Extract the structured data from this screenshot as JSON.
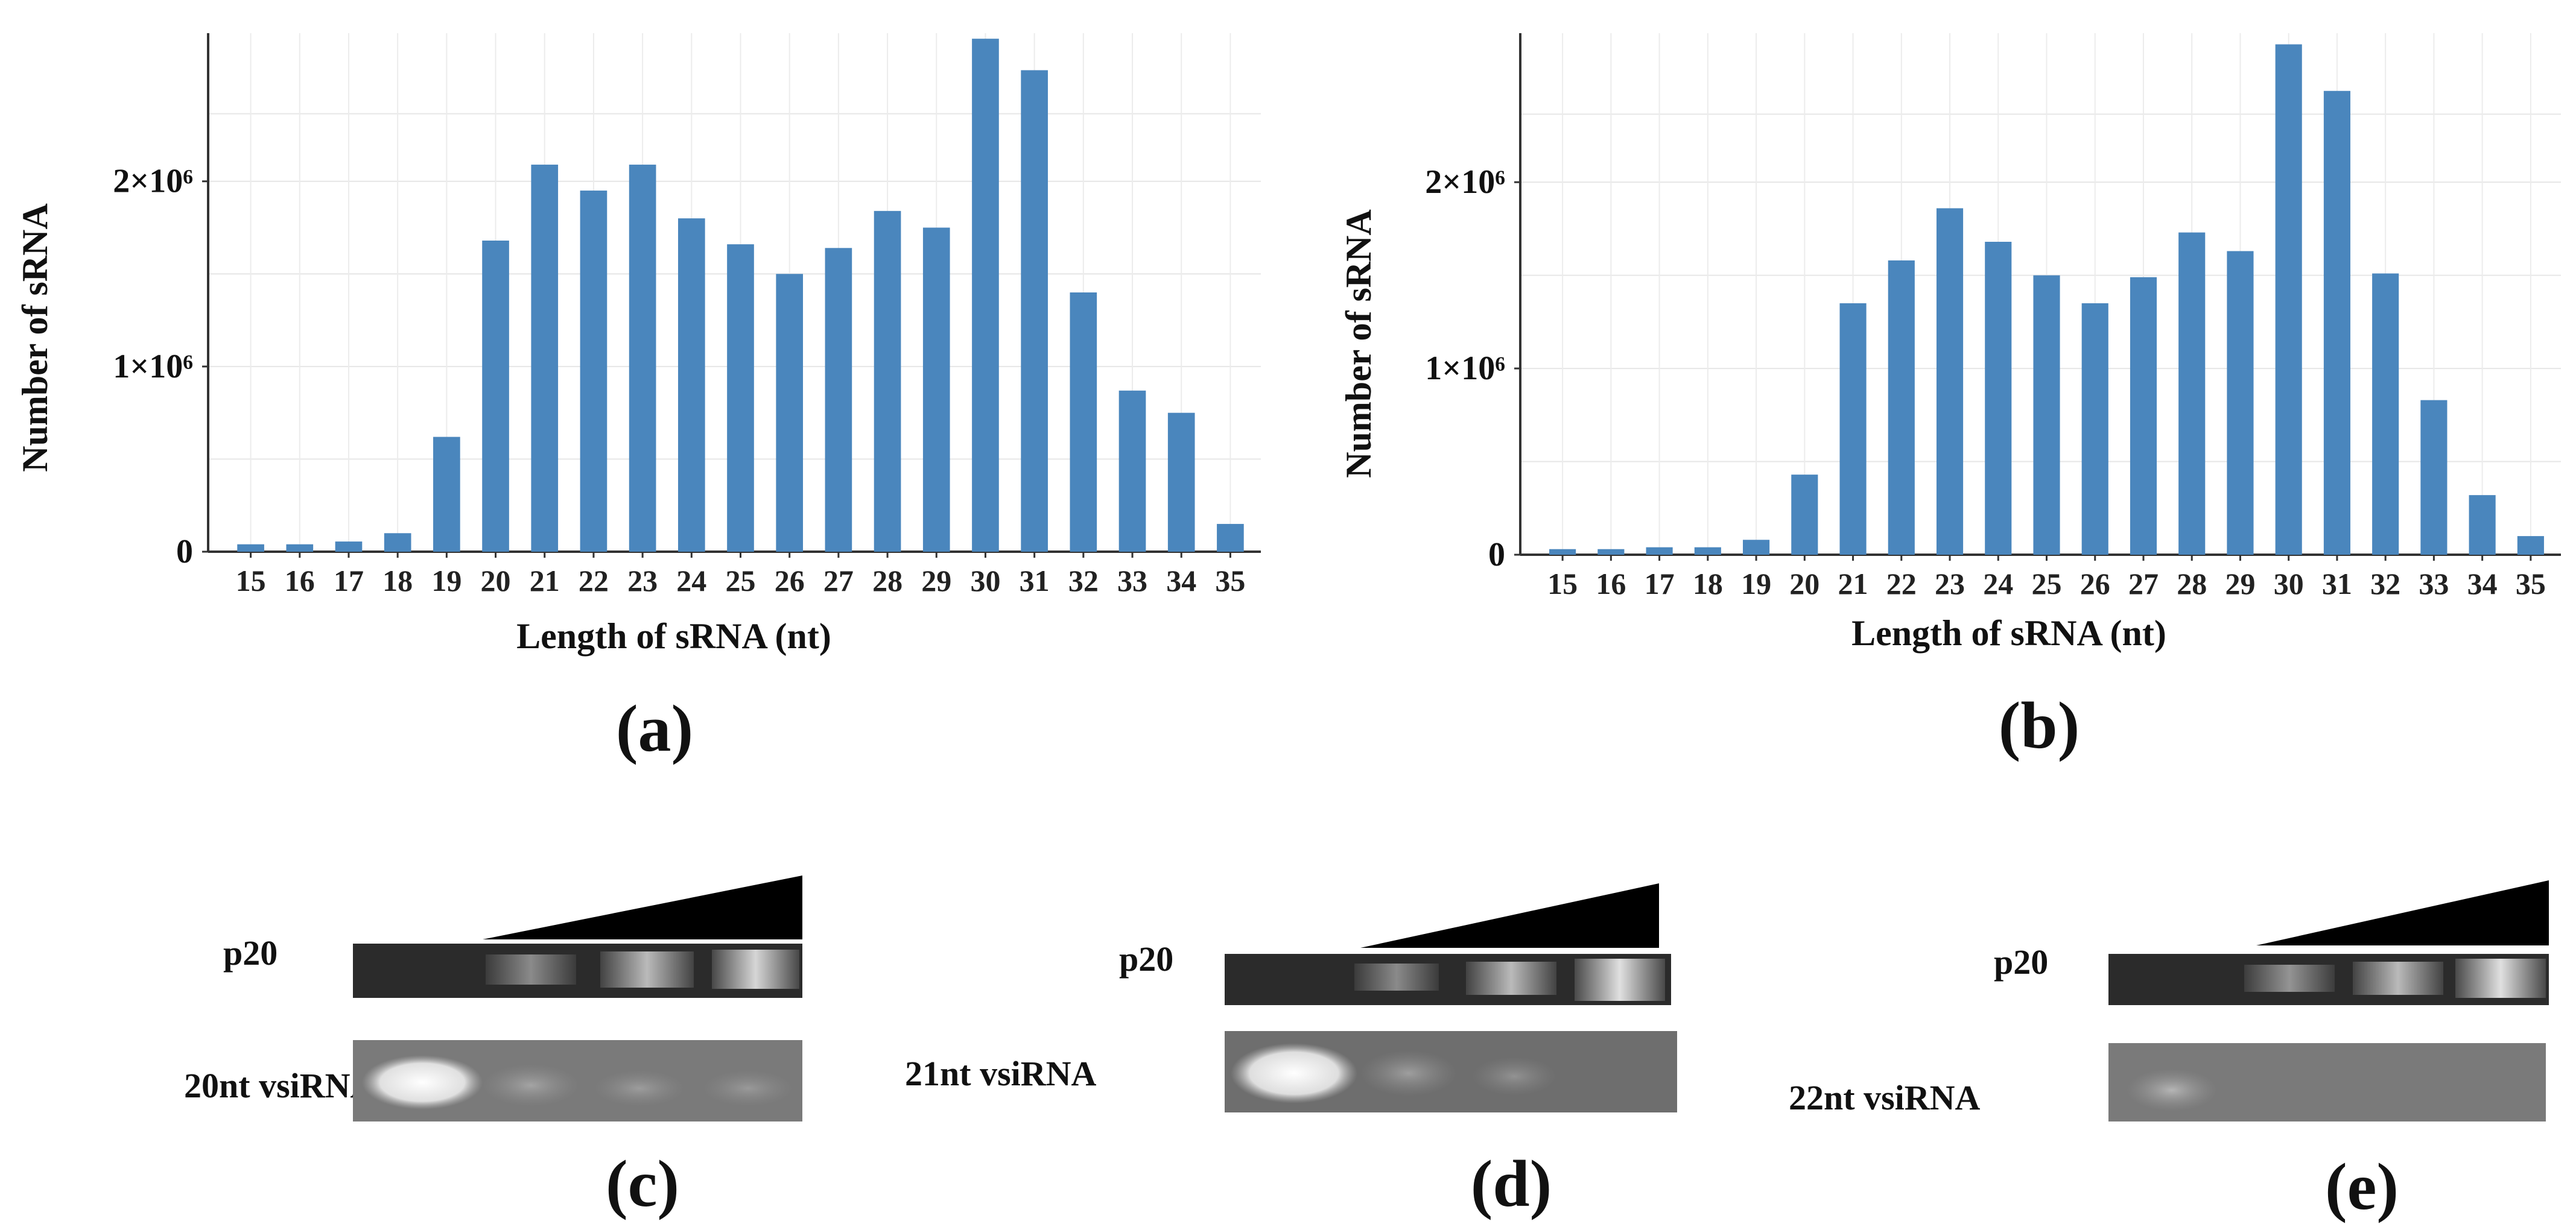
{
  "chart_data": [
    {
      "type": "bar",
      "panel_label": "(a)",
      "xlabel": "Length of sRNA (nt)",
      "ylabel": "Number of sRNA",
      "categories": [
        "15",
        "16",
        "17",
        "18",
        "19",
        "20",
        "21",
        "22",
        "23",
        "24",
        "25",
        "26",
        "27",
        "28",
        "29",
        "30",
        "31",
        "32",
        "33",
        "34",
        "35"
      ],
      "values": [
        40000,
        40000,
        55000,
        100000,
        620000,
        1680000,
        2090000,
        1950000,
        2090000,
        1800000,
        1660000,
        1500000,
        1640000,
        1840000,
        1750000,
        2770000,
        2600000,
        1400000,
        870000,
        750000,
        150000
      ],
      "ylim": [
        0,
        2800000
      ],
      "yticks": [
        0,
        1000000,
        2000000
      ],
      "ytick_labels": [
        "0",
        "1×10⁶",
        "2×10⁶"
      ],
      "color": "#4a86bd",
      "grid": true
    },
    {
      "type": "bar",
      "panel_label": "(b)",
      "xlabel": "Length of sRNA (nt)",
      "ylabel": "Number of sRNA",
      "categories": [
        "15",
        "16",
        "17",
        "18",
        "19",
        "20",
        "21",
        "22",
        "23",
        "24",
        "25",
        "26",
        "27",
        "28",
        "29",
        "30",
        "31",
        "32",
        "33",
        "34",
        "35"
      ],
      "values": [
        30000,
        30000,
        40000,
        40000,
        80000,
        430000,
        1350000,
        1580000,
        1860000,
        1680000,
        1500000,
        1350000,
        1490000,
        1730000,
        1630000,
        2740000,
        2490000,
        1510000,
        830000,
        320000,
        100000
      ],
      "ylim": [
        0,
        2800000
      ],
      "yticks": [
        0,
        1000000,
        2000000
      ],
      "ytick_labels": [
        "0",
        "1×10⁶",
        "2×10⁶"
      ],
      "color": "#4a86bd",
      "grid": true
    }
  ],
  "gels": [
    {
      "panel_label": "(c)",
      "protein_label": "p20",
      "rna_label": "20nt vsiRNA"
    },
    {
      "panel_label": "(d)",
      "protein_label": "p20",
      "rna_label": "21nt vsiRNA"
    },
    {
      "panel_label": "(e)",
      "protein_label": "p20",
      "rna_label": "22nt vsiRNA"
    }
  ]
}
